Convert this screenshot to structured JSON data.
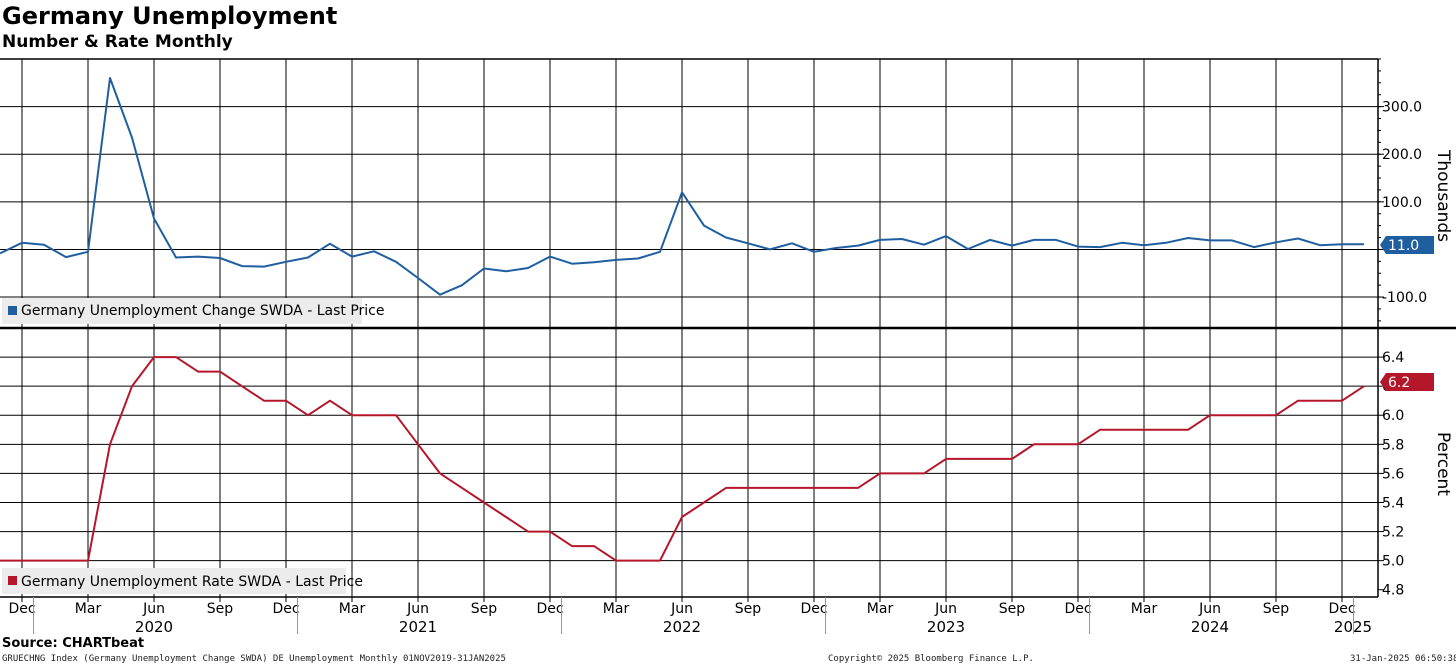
{
  "header": {
    "title": "Germany Unemployment",
    "subtitle": "Number & Rate Monthly"
  },
  "footer": {
    "source": "Source: CHARTbeat",
    "index_note": "GRUECHNG Index (Germany Unemployment Change SWDA) DE Unemployment  Monthly 01NOV2019-31JAN2025",
    "copyright": "Copyright© 2025 Bloomberg Finance L.P.",
    "timestamp": "31-Jan-2025 06:50:38"
  },
  "colors": {
    "change_series": "#1f5fa0",
    "rate_series": "#b5172a",
    "grid": "#000000"
  },
  "chart_data": [
    {
      "type": "line",
      "series": [
        {
          "name": "Germany Unemployment Change SWDA - Last Price",
          "values": [
            -8,
            14,
            10,
            -16,
            -5,
            360,
            235,
            65,
            -17,
            -15,
            -18,
            -35,
            -36,
            -26,
            -17,
            12,
            -15,
            -4,
            -26,
            -60,
            -95,
            -75,
            -40,
            -46,
            -39,
            -15,
            -30,
            -27,
            -22,
            -19,
            -5,
            120,
            50,
            25,
            13,
            0,
            13,
            -5,
            3,
            8,
            20,
            22,
            10,
            28,
            1,
            20,
            8,
            20,
            20,
            6,
            5,
            14,
            9,
            14,
            24,
            19,
            19,
            5,
            15,
            23,
            9,
            11,
            11
          ]
        }
      ],
      "last_value_label": "11.0",
      "y_axis_label": "Thousands",
      "y_ticks": [
        "300.0",
        "200.0",
        "100.0",
        "-100.0"
      ],
      "ylim": [
        -165,
        400
      ],
      "grid": true,
      "legend_position": "bottom-left"
    },
    {
      "type": "line",
      "series": [
        {
          "name": "Germany Unemployment Rate SWDA - Last Price",
          "values": [
            5.0,
            5.0,
            5.0,
            5.0,
            5.0,
            5.8,
            6.2,
            6.4,
            6.4,
            6.3,
            6.3,
            6.2,
            6.1,
            6.1,
            6.0,
            6.1,
            6.0,
            6.0,
            6.0,
            5.8,
            5.6,
            5.5,
            5.4,
            5.3,
            5.2,
            5.2,
            5.1,
            5.1,
            5.0,
            5.0,
            5.0,
            5.3,
            5.4,
            5.5,
            5.5,
            5.5,
            5.5,
            5.5,
            5.5,
            5.5,
            5.6,
            5.6,
            5.6,
            5.7,
            5.7,
            5.7,
            5.7,
            5.8,
            5.8,
            5.8,
            5.9,
            5.9,
            5.9,
            5.9,
            5.9,
            6.0,
            6.0,
            6.0,
            6.0,
            6.1,
            6.1,
            6.1,
            6.2
          ]
        }
      ],
      "last_value_label": "6.2",
      "y_axis_label": "Percent",
      "y_ticks": [
        "6.4",
        "6.2",
        "6.0",
        "5.8",
        "5.6",
        "5.4",
        "5.2",
        "5.0",
        "4.8"
      ],
      "ylim": [
        4.75,
        6.6
      ],
      "grid": true,
      "legend_position": "bottom-left"
    }
  ],
  "x_axis": {
    "month_labels": [
      "Dec",
      "Mar",
      "Jun",
      "Sep",
      "Dec",
      "Mar",
      "Jun",
      "Sep",
      "Dec",
      "Mar",
      "Jun",
      "Sep",
      "Dec",
      "Mar",
      "Jun",
      "Sep",
      "Dec",
      "Mar",
      "Jun",
      "Sep",
      "Dec"
    ],
    "year_labels": [
      "2020",
      "2021",
      "2022",
      "2023",
      "2024",
      "2025"
    ]
  }
}
